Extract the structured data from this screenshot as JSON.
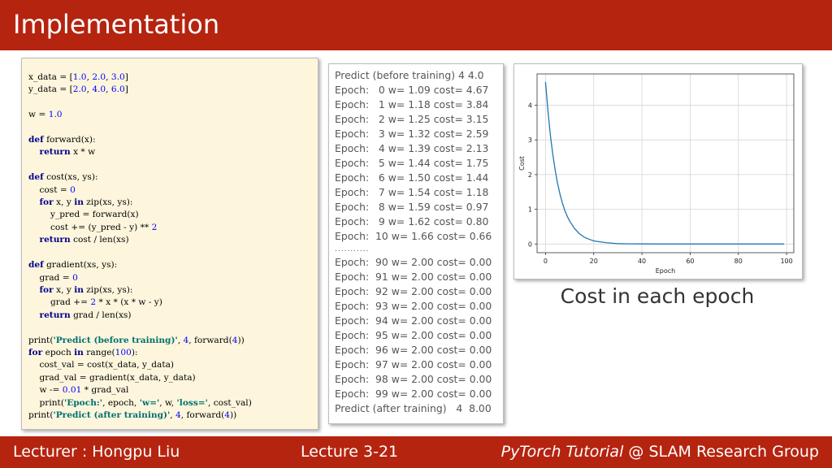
{
  "slide": {
    "title": "Implementation",
    "footer_left": "Lecturer : Hongpu Liu",
    "footer_center": "Lecture 3-21",
    "footer_right_italic": "PyTorch Tutorial",
    "footer_right_rest": " @ SLAM Research Group"
  },
  "code_lines": [
    "x_data = [1.0, 2.0, 3.0]",
    "y_data = [2.0, 4.0, 6.0]",
    "",
    "w = 1.0",
    "",
    "def forward(x):",
    "    return x * w",
    "",
    "def cost(xs, ys):",
    "    cost = 0",
    "    for x, y in zip(xs, ys):",
    "        y_pred = forward(x)",
    "        cost += (y_pred - y) ** 2",
    "    return cost / len(xs)",
    "",
    "def gradient(xs, ys):",
    "    grad = 0",
    "    for x, y in zip(xs, ys):",
    "        grad += 2 * x * (x * w - y)",
    "    return grad / len(xs)",
    "",
    "print('Predict (before training)', 4, forward(4))",
    "for epoch in range(100):",
    "    cost_val = cost(x_data, y_data)",
    "    grad_val = gradient(x_data, y_data)",
    "    w -= 0.01 * grad_val",
    "    print('Epoch:', epoch, 'w=', w, 'loss=', cost_val)",
    "print('Predict (after training)', 4, forward(4))"
  ],
  "output_top": [
    "Predict (before training) 4 4.0",
    "Epoch:   0 w= 1.09 cost= 4.67",
    "Epoch:   1 w= 1.18 cost= 3.84",
    "Epoch:   2 w= 1.25 cost= 3.15",
    "Epoch:   3 w= 1.32 cost= 2.59",
    "Epoch:   4 w= 1.39 cost= 2.13",
    "Epoch:   5 w= 1.44 cost= 1.75",
    "Epoch:   6 w= 1.50 cost= 1.44",
    "Epoch:   7 w= 1.54 cost= 1.18",
    "Epoch:   8 w= 1.59 cost= 0.97",
    "Epoch:   9 w= 1.62 cost= 0.80",
    "Epoch:  10 w= 1.66 cost= 0.66"
  ],
  "output_ellipsis": "...........",
  "output_bottom": [
    "Epoch:  90 w= 2.00 cost= 0.00",
    "Epoch:  91 w= 2.00 cost= 0.00",
    "Epoch:  92 w= 2.00 cost= 0.00",
    "Epoch:  93 w= 2.00 cost= 0.00",
    "Epoch:  94 w= 2.00 cost= 0.00",
    "Epoch:  95 w= 2.00 cost= 0.00",
    "Epoch:  96 w= 2.00 cost= 0.00",
    "Epoch:  97 w= 2.00 cost= 0.00",
    "Epoch:  98 w= 2.00 cost= 0.00",
    "Epoch:  99 w= 2.00 cost= 0.00",
    "Predict (after training)   4  8.00"
  ],
  "caption": "Cost in each epoch",
  "chart_data": {
    "type": "line",
    "xlabel": "Epoch",
    "ylabel": "Cost",
    "xlim": [
      -3.5,
      103
    ],
    "ylim": [
      -0.25,
      4.9
    ],
    "xticks": [
      0,
      20,
      40,
      60,
      80,
      100
    ],
    "yticks": [
      0,
      1,
      2,
      3,
      4
    ],
    "grid": true,
    "series": [
      {
        "color": "#1f77b4",
        "x": [
          0,
          1,
          2,
          3,
          4,
          5,
          6,
          7,
          8,
          9,
          10,
          12,
          14,
          16,
          18,
          20,
          25,
          30,
          35,
          40,
          50,
          60,
          70,
          80,
          90,
          99
        ],
        "y": [
          4.67,
          3.84,
          3.15,
          2.59,
          2.13,
          1.75,
          1.44,
          1.18,
          0.97,
          0.8,
          0.66,
          0.45,
          0.3,
          0.2,
          0.14,
          0.09,
          0.04,
          0.01,
          0.005,
          0.002,
          0,
          0,
          0,
          0,
          0,
          0
        ]
      }
    ]
  }
}
